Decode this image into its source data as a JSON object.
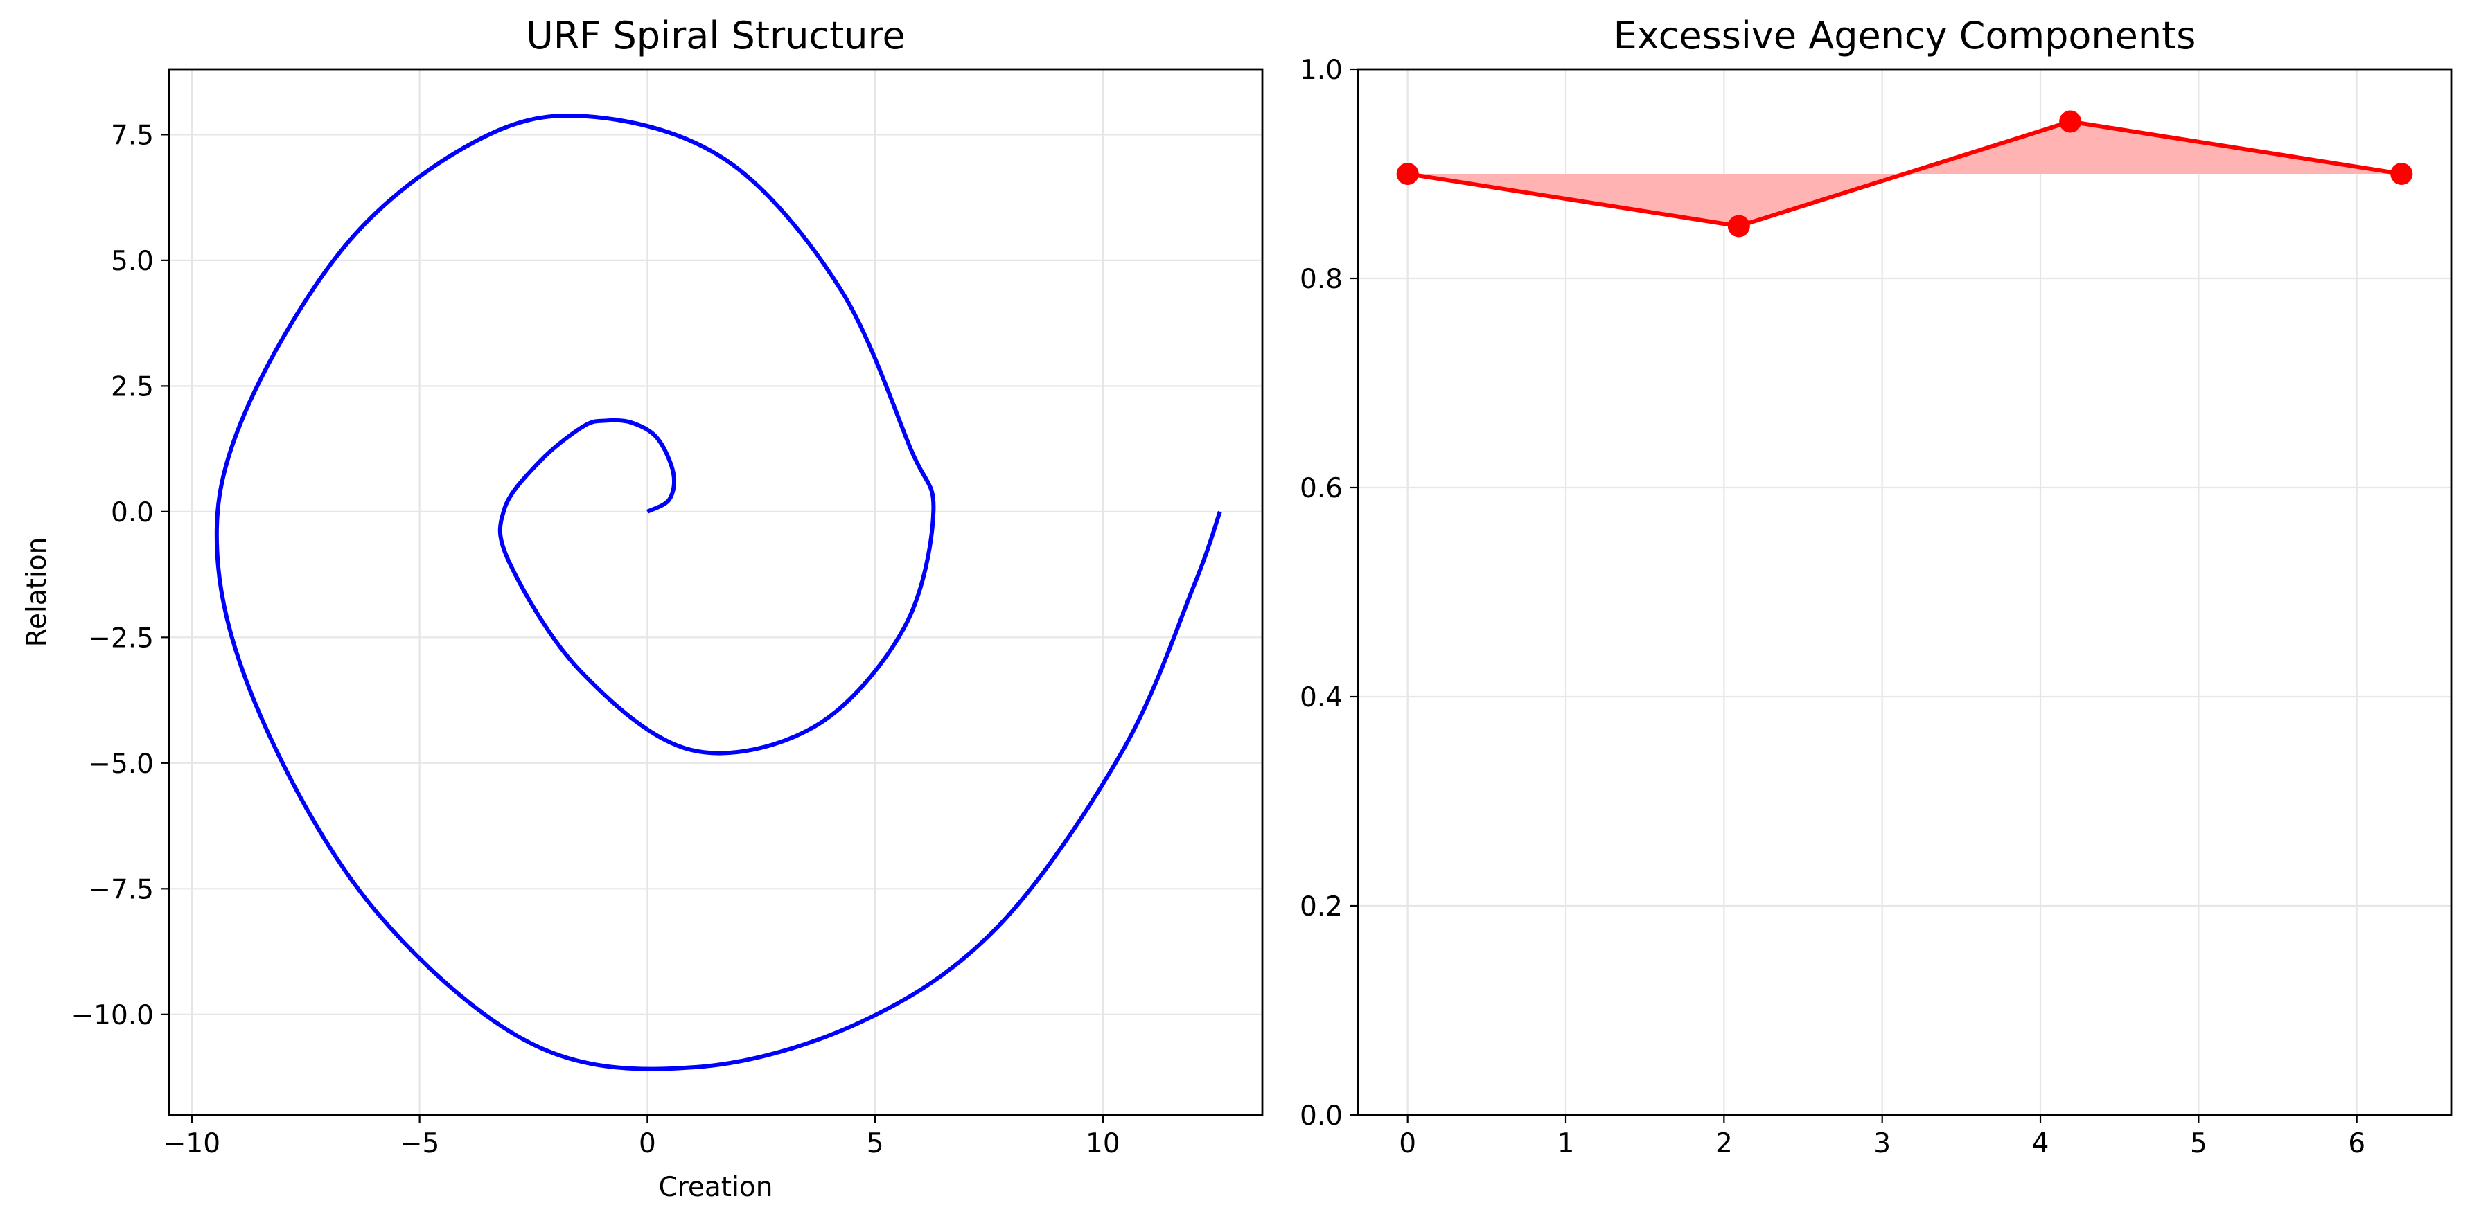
{
  "chart_data": [
    {
      "type": "line",
      "title": "URF Spiral Structure",
      "xlabel": "Creation",
      "ylabel": "Relation",
      "xlim": [
        -10.5,
        13.5
      ],
      "ylim": [
        -12.0,
        8.8
      ],
      "x_ticks": [
        -10,
        -5,
        0,
        5,
        10
      ],
      "x_tick_labels": [
        "−10",
        "−5",
        "0",
        "5",
        "10"
      ],
      "y_ticks": [
        -10,
        -7.5,
        -5,
        -2.5,
        0,
        2.5,
        5,
        7.5
      ],
      "y_tick_labels": [
        "−10.0",
        "−7.5",
        "−5.0",
        "−2.5",
        "0.0",
        "2.5",
        "5.0",
        "7.5"
      ],
      "grid": true,
      "line_color": "#0000ff",
      "series": [
        {
          "x": [
            0,
            0.48,
            0.57,
            0.22,
            -0.34,
            -0.92,
            -1.42,
            -2.36,
            -3.14,
            -3.03,
            -1.46,
            0.96,
            3.66,
            5.63,
            6.28,
            5.78,
            4.25,
            1.86,
            -0.95,
            -3.48,
            -6.53,
            -8.93,
            -9.42,
            -8.32,
            -5.92,
            -2.48,
            1.05,
            4.69,
            7.71,
            10.43,
            11.99,
            12.57
          ],
          "y": [
            0,
            0.24,
            0.77,
            1.46,
            1.77,
            1.81,
            1.69,
            1.0,
            0.05,
            -1.01,
            -3.18,
            -4.74,
            -4.28,
            -2.32,
            0,
            1.25,
            4.41,
            6.91,
            7.83,
            7.5,
            5.4,
            1.76,
            -1.1,
            -4.41,
            -7.99,
            -10.61,
            -11.05,
            -10.15,
            -8.24,
            -4.76,
            -1.49,
            0
          ]
        }
      ]
    },
    {
      "type": "area",
      "title": "Excessive Agency Components",
      "xlim": [
        -0.314,
        6.597
      ],
      "ylim": [
        0.0,
        1.0
      ],
      "x_ticks": [
        0,
        1,
        2,
        3,
        4,
        5,
        6
      ],
      "x_tick_labels": [
        "0",
        "1",
        "2",
        "3",
        "4",
        "5",
        "6"
      ],
      "y_ticks": [
        0,
        0.2,
        0.4,
        0.6,
        0.8,
        1.0
      ],
      "y_tick_labels": [
        "0.0",
        "0.2",
        "0.4",
        "0.6",
        "0.8",
        "1.0"
      ],
      "grid": true,
      "line_color": "#ff0000",
      "fill_color": "#ffb3b3",
      "fill_baseline": 0.9,
      "series": [
        {
          "x": [
            0,
            2.094,
            4.189,
            6.283
          ],
          "y": [
            0.9,
            0.85,
            0.95,
            0.9
          ]
        }
      ]
    }
  ]
}
